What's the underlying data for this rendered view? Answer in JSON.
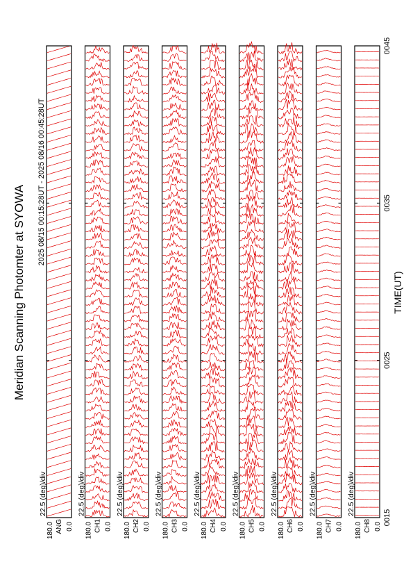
{
  "chart_data": {
    "type": "line",
    "title": "Meridian Scanning Photomter at SYOWA",
    "subtitle": "2025 08/15 00:15:28UT - 2025 08/16 00:45:28UT",
    "xlabel": "TIME(UT)",
    "x_ticks": [
      "0015",
      "0025",
      "0035",
      "0045"
    ],
    "x_range": [
      "0015",
      "0045"
    ],
    "y_tick_top": "180.0",
    "y_tick_bottom": "0.0",
    "y_range": [
      0,
      180
    ],
    "panels": [
      {
        "scale_label": "22.5 (deg)/div",
        "channel_label": "ANG",
        "kind": "angle"
      },
      {
        "scale_label": "22.5 (deg)/div",
        "channel_label": "CH1",
        "kind": "aurora",
        "level": 0.55
      },
      {
        "scale_label": "22.5 (deg)/div",
        "channel_label": "CH2",
        "kind": "aurora",
        "level": 0.55
      },
      {
        "scale_label": "22.5 (deg)/div",
        "channel_label": "CH3",
        "kind": "aurora",
        "level": 0.6
      },
      {
        "scale_label": "22.5 (deg)/div",
        "channel_label": "CH4",
        "kind": "aurora",
        "level": 0.8
      },
      {
        "scale_label": "22.5 (deg)/div",
        "channel_label": "CH5",
        "kind": "aurora",
        "level": 0.9
      },
      {
        "scale_label": "22.5 (deg)/div",
        "channel_label": "CH6",
        "kind": "aurora",
        "level": 0.85
      },
      {
        "scale_label": "22.5 (deg)/div",
        "channel_label": "CH7",
        "kind": "smooth",
        "level": 0.3
      },
      {
        "scale_label": "22.5 (deg)/div",
        "channel_label": "CH8",
        "kind": "flat",
        "level": 0.12
      }
    ],
    "grid": false,
    "line_color": "#e00000"
  }
}
